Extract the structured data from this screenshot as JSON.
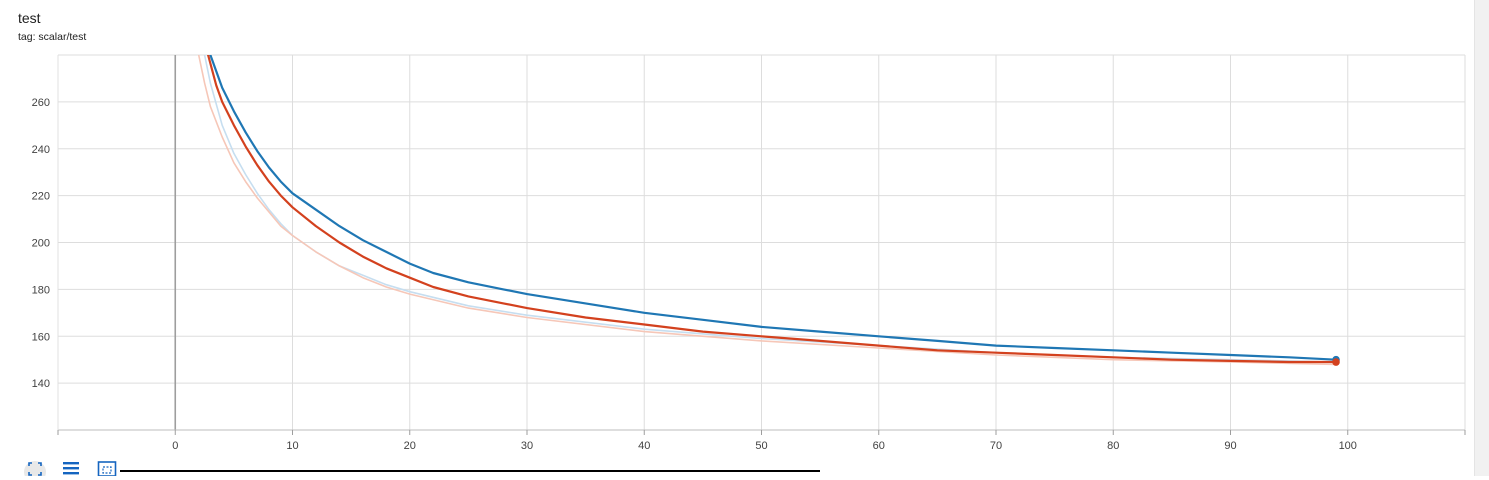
{
  "header": {
    "title": "test",
    "tag": "tag: scalar/test"
  },
  "toolbar": {
    "buttons": [
      {
        "name": "fit-domain-button",
        "icon": "fit-to-data-icon"
      },
      {
        "name": "toggle-log-scale-button",
        "icon": "list-lines-icon"
      },
      {
        "name": "download-button",
        "icon": "dashed-box-icon"
      }
    ]
  },
  "colors": {
    "series_blue": "#1f77b4",
    "series_red": "#d3411e",
    "series_blue_raw": "#c6def0",
    "series_red_raw": "#f6c7b8",
    "grid": "#dddddd",
    "axis": "#9e9e9e"
  },
  "chart_data": {
    "type": "line",
    "title": "test",
    "subtitle": "tag: scalar/test",
    "xlabel": "",
    "ylabel": "",
    "xlim": [
      -10,
      110
    ],
    "ylim": [
      120,
      280
    ],
    "x_ticks": [
      "0",
      "10",
      "20",
      "30",
      "40",
      "50",
      "60",
      "70",
      "80",
      "90",
      "100"
    ],
    "y_ticks": [
      "140",
      "160",
      "180",
      "200",
      "220",
      "240",
      "260"
    ],
    "grid": true,
    "series": [
      {
        "color": "#1f77b4",
        "style": "smoothed",
        "x": [
          3,
          4,
          5,
          6,
          7,
          8,
          9,
          10,
          12,
          14,
          16,
          18,
          20,
          22,
          25,
          28,
          30,
          35,
          40,
          45,
          50,
          55,
          60,
          65,
          70,
          75,
          80,
          85,
          90,
          95,
          99
        ],
        "y": [
          280,
          266,
          256,
          247,
          239,
          232,
          226,
          221,
          214,
          207,
          201,
          196,
          191,
          187,
          183,
          180,
          178,
          174,
          170,
          167,
          164,
          162,
          160,
          158,
          156,
          155,
          154,
          153,
          152,
          151,
          150
        ]
      },
      {
        "color": "#d3411e",
        "style": "smoothed",
        "x": [
          2.8,
          3.5,
          4,
          5,
          6,
          7,
          8,
          9,
          10,
          12,
          14,
          16,
          18,
          20,
          22,
          25,
          28,
          30,
          35,
          40,
          45,
          50,
          55,
          60,
          65,
          70,
          75,
          80,
          85,
          90,
          95,
          99
        ],
        "y": [
          280,
          267,
          260,
          250,
          241,
          233,
          226,
          220,
          215,
          207,
          200,
          194,
          189,
          185,
          181,
          177,
          174,
          172,
          168,
          165,
          162,
          160,
          158,
          156,
          154,
          153,
          152,
          151,
          150,
          149.5,
          149,
          149
        ]
      },
      {
        "color": "#c6def0",
        "style": "raw",
        "x": [
          2.5,
          3,
          4,
          5,
          6,
          7,
          8,
          9,
          10,
          12,
          14,
          16,
          18,
          20,
          25,
          30,
          40,
          50,
          60,
          70,
          80,
          90,
          99
        ],
        "y": [
          280,
          268,
          250,
          238,
          229,
          221,
          214,
          208,
          203,
          196,
          190,
          186,
          182,
          179,
          173,
          169,
          163,
          159,
          156,
          153,
          151,
          150,
          149
        ]
      },
      {
        "color": "#f6c7b8",
        "style": "raw",
        "x": [
          2,
          2.5,
          3,
          4,
          5,
          6,
          7,
          8,
          9,
          10,
          12,
          14,
          16,
          18,
          20,
          25,
          30,
          40,
          50,
          60,
          70,
          80,
          90,
          99
        ],
        "y": [
          280,
          268,
          258,
          245,
          234,
          226,
          219,
          213,
          207,
          203,
          196,
          190,
          185,
          181,
          178,
          172,
          168,
          162,
          158,
          155,
          152,
          150,
          149,
          148
        ]
      }
    ]
  }
}
